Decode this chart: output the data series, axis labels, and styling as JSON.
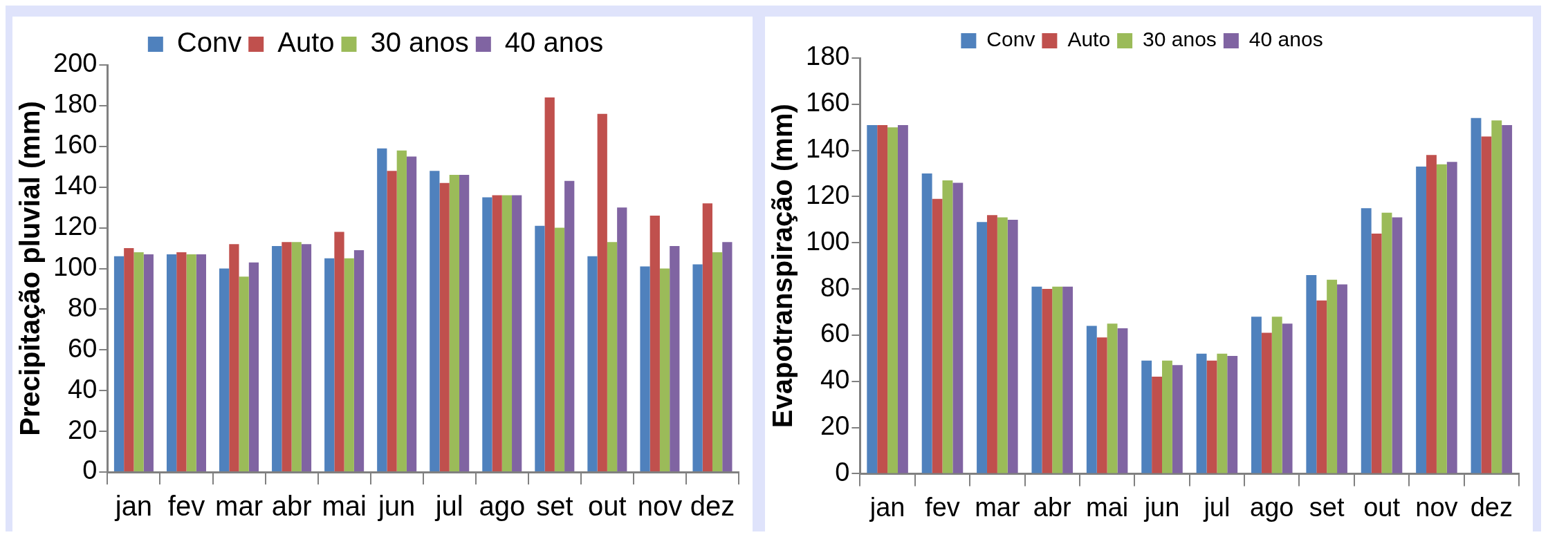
{
  "chart_data": [
    {
      "type": "bar",
      "ylabel": "Precipitação pluvial (mm)",
      "categories": [
        "jan",
        "fev",
        "mar",
        "abr",
        "mai",
        "jun",
        "jul",
        "ago",
        "set",
        "out",
        "nov",
        "dez"
      ],
      "ylim": [
        0,
        200
      ],
      "yticks": [
        0,
        20,
        40,
        60,
        80,
        100,
        120,
        140,
        160,
        180,
        200
      ],
      "grid": false,
      "legend": "top",
      "series": [
        {
          "name": "Conv",
          "color": "#4f81bd",
          "values": [
            106,
            107,
            100,
            111,
            105,
            159,
            148,
            135,
            121,
            106,
            101,
            102
          ]
        },
        {
          "name": "Auto",
          "color": "#c0504d",
          "values": [
            110,
            108,
            112,
            113,
            118,
            148,
            142,
            136,
            184,
            176,
            126,
            132
          ]
        },
        {
          "name": "30 anos",
          "color": "#9bbb59",
          "values": [
            108,
            107,
            96,
            113,
            105,
            158,
            146,
            136,
            120,
            113,
            100,
            108
          ]
        },
        {
          "name": "40 anos",
          "color": "#8064a2",
          "values": [
            107,
            107,
            103,
            112,
            109,
            155,
            146,
            136,
            143,
            130,
            111,
            113
          ]
        }
      ]
    },
    {
      "type": "bar",
      "ylabel": "Evapotranspiração (mm)",
      "categories": [
        "jan",
        "fev",
        "mar",
        "abr",
        "mai",
        "jun",
        "jul",
        "ago",
        "set",
        "out",
        "nov",
        "dez"
      ],
      "ylim": [
        0,
        180
      ],
      "yticks": [
        0,
        20,
        40,
        60,
        80,
        100,
        120,
        140,
        160,
        180
      ],
      "grid": false,
      "legend": "top",
      "series": [
        {
          "name": "Conv",
          "color": "#4f81bd",
          "values": [
            151,
            130,
            109,
            81,
            64,
            49,
            52,
            68,
            86,
            115,
            133,
            154
          ]
        },
        {
          "name": "Auto",
          "color": "#c0504d",
          "values": [
            151,
            119,
            112,
            80,
            59,
            42,
            49,
            61,
            75,
            104,
            138,
            146
          ]
        },
        {
          "name": "30 anos",
          "color": "#9bbb59",
          "values": [
            150,
            127,
            111,
            81,
            65,
            49,
            52,
            68,
            84,
            113,
            134,
            153
          ]
        },
        {
          "name": "40 anos",
          "color": "#8064a2",
          "values": [
            151,
            126,
            110,
            81,
            63,
            47,
            51,
            65,
            82,
            111,
            135,
            151
          ]
        }
      ]
    }
  ]
}
